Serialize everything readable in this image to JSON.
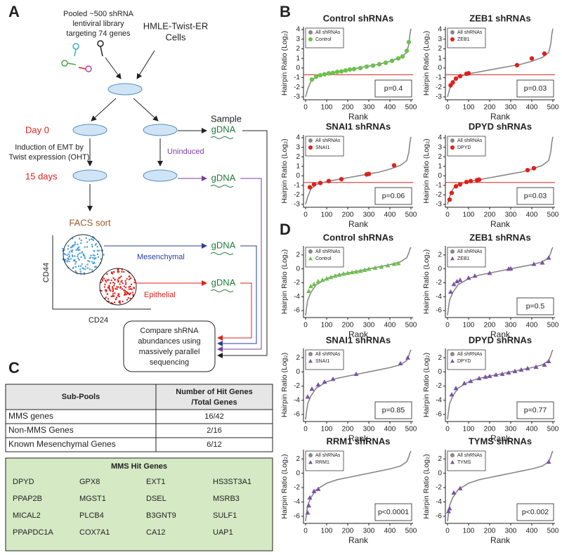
{
  "panel_labels": [
    "A",
    "B",
    "C",
    "D"
  ],
  "panel_a": {
    "library": [
      "Pooled ~500  shRNA",
      "lentiviral library",
      "targeting 74 genes"
    ],
    "cells": [
      "HMLE-Twist-ER",
      "Cells"
    ],
    "day0": "Day 0",
    "induction": [
      "Induction of EMT by",
      "Twist expression (OHT)"
    ],
    "days15": "15 days",
    "uninduced": "Uninduced",
    "sample": "Sample",
    "gdna": [
      "gDNA",
      "gDNA",
      "gDNA",
      "gDNA"
    ],
    "facs": "FACS sort",
    "y_axis": "CD44",
    "x_axis": "CD24",
    "mesenchymal": "Mesenchymal",
    "epithelial": "Epithelial",
    "compare": [
      "Compare shRNA",
      "abundances using",
      "massively parallel",
      "sequencing"
    ]
  },
  "panel_c": {
    "table": {
      "header": [
        "Sub-Pools",
        [
          "Number of Hit Genes",
          "/Total Genes"
        ]
      ],
      "rows": [
        [
          "MMS genes",
          "16/42"
        ],
        [
          "Non-MMS Genes",
          "2/16"
        ],
        [
          "Known Mesenchymal Genes",
          "6/12"
        ]
      ]
    },
    "hit_genes": {
      "title": "MMS Hit Genes",
      "rows": [
        [
          "DPYD",
          "GPX8",
          "EXT1",
          "HS3ST3A1"
        ],
        [
          "PPAP2B",
          "MGST1",
          "DSEL",
          "MSRB3"
        ],
        [
          "MICAL2",
          "PLCB4",
          "B3GNT9",
          "SULF1"
        ],
        [
          "PPAPDC1A",
          "COX7A1",
          "CA12",
          "UAP1"
        ]
      ]
    }
  },
  "chart_data": [
    {
      "type": "scatter",
      "title": "Control shRNAs",
      "xlabel": "Rank",
      "ylabel": "Hairpin Ratio (Log₂)",
      "xlim": [
        -10,
        510
      ],
      "ylim": [
        -3.3,
        4.3
      ],
      "xticks": [
        0,
        100,
        200,
        300,
        400,
        500
      ],
      "yticks": [
        -3,
        -2,
        -1,
        0,
        1,
        2,
        3,
        4
      ],
      "hline": -0.7,
      "hline_color": "#e0201b",
      "annotation": "p=0.4",
      "series": [
        {
          "name": "All shRNAs",
          "color": "#888888",
          "marker": "line",
          "x": [
            0,
            5,
            10,
            25,
            50,
            100,
            150,
            200,
            250,
            300,
            350,
            400,
            450,
            480,
            490,
            495,
            500
          ],
          "values": [
            -3,
            -2.6,
            -2.2,
            -1.4,
            -0.9,
            -0.6,
            -0.4,
            -0.2,
            0,
            0.2,
            0.4,
            0.7,
            1.1,
            1.6,
            2.5,
            3.5,
            4.1
          ]
        },
        {
          "name": "Control",
          "color": "#6cc24a",
          "marker": "circle",
          "x": [
            30,
            50,
            70,
            90,
            110,
            130,
            150,
            170,
            190,
            210,
            230,
            260,
            290,
            320,
            350,
            380,
            410,
            440,
            460,
            480,
            490
          ],
          "values": [
            -1.2,
            -0.9,
            -0.75,
            -0.65,
            -0.55,
            -0.5,
            -0.4,
            -0.35,
            -0.25,
            -0.15,
            -0.1,
            0,
            0.15,
            0.25,
            0.4,
            0.55,
            0.75,
            1,
            1.2,
            1.8,
            2.7
          ]
        }
      ]
    },
    {
      "type": "scatter",
      "title": "ZEB1 shRNAs",
      "xlabel": "Rank",
      "ylabel": "Hairpin Ratio (Log₂)",
      "xlim": [
        -10,
        510
      ],
      "ylim": [
        -3.3,
        4.3
      ],
      "xticks": [
        0,
        100,
        200,
        300,
        400,
        500
      ],
      "yticks": [
        -3,
        -2,
        -1,
        0,
        1,
        2,
        3,
        4
      ],
      "hline": -0.7,
      "hline_color": "#e0201b",
      "annotation": "p=0.03",
      "series": [
        {
          "name": "All shRNAs",
          "color": "#888888",
          "marker": "line",
          "x": [
            0,
            5,
            10,
            25,
            50,
            100,
            150,
            200,
            250,
            300,
            350,
            400,
            450,
            480,
            490,
            495,
            500
          ],
          "values": [
            -3,
            -2.6,
            -2.2,
            -1.4,
            -0.9,
            -0.6,
            -0.4,
            -0.2,
            0,
            0.2,
            0.4,
            0.7,
            1.1,
            1.6,
            2.5,
            3.5,
            4.1
          ]
        },
        {
          "name": "ZEB1",
          "color": "#e0201b",
          "marker": "circle",
          "x": [
            15,
            25,
            40,
            60,
            90,
            100,
            330,
            400,
            460
          ],
          "values": [
            -1.8,
            -1.5,
            -1.1,
            -0.85,
            -0.6,
            -0.55,
            0.3,
            1.0,
            1.5
          ]
        }
      ]
    },
    {
      "type": "scatter",
      "title": "SNAI1 shRNAs",
      "xlabel": "Rank",
      "ylabel": "Hairpin Ratio (Log₂)",
      "xlim": [
        -10,
        510
      ],
      "ylim": [
        -3.3,
        4.3
      ],
      "xticks": [
        0,
        100,
        200,
        300,
        400,
        500
      ],
      "yticks": [
        -3,
        -2,
        -1,
        0,
        1,
        2,
        3,
        4
      ],
      "hline": -0.7,
      "hline_color": "#e0201b",
      "annotation": "p=0.06",
      "series": [
        {
          "name": "All shRNAs",
          "color": "#888888",
          "marker": "line",
          "x": [
            0,
            5,
            10,
            25,
            50,
            100,
            150,
            200,
            250,
            300,
            350,
            400,
            450,
            480,
            490,
            495,
            500
          ],
          "values": [
            -3,
            -2.6,
            -2.2,
            -1.4,
            -0.9,
            -0.6,
            -0.4,
            -0.2,
            0,
            0.2,
            0.4,
            0.7,
            1.1,
            1.6,
            2.5,
            3.5,
            4.1
          ]
        },
        {
          "name": "SNAI1",
          "color": "#e0201b",
          "marker": "circle",
          "x": [
            20,
            40,
            70,
            110,
            170,
            290,
            300,
            420
          ],
          "values": [
            -1.2,
            -0.9,
            -0.75,
            -0.55,
            -0.35,
            0.15,
            0.2,
            1.1
          ]
        }
      ]
    },
    {
      "type": "scatter",
      "title": "DPYD shRNAs",
      "xlabel": "Rank",
      "ylabel": "Hairpin Ratio (Log₂)",
      "xlim": [
        -10,
        510
      ],
      "ylim": [
        -3.3,
        4.3
      ],
      "xticks": [
        0,
        100,
        200,
        300,
        400,
        500
      ],
      "yticks": [
        -3,
        -2,
        -1,
        0,
        1,
        2,
        3,
        4
      ],
      "hline": -0.7,
      "hline_color": "#e0201b",
      "annotation": "p=0.03",
      "series": [
        {
          "name": "All shRNAs",
          "color": "#888888",
          "marker": "line",
          "x": [
            0,
            5,
            10,
            25,
            50,
            100,
            150,
            200,
            250,
            300,
            350,
            400,
            450,
            480,
            490,
            495,
            500
          ],
          "values": [
            -3,
            -2.6,
            -2.2,
            -1.4,
            -0.9,
            -0.6,
            -0.4,
            -0.2,
            0,
            0.2,
            0.4,
            0.7,
            1.1,
            1.6,
            2.5,
            3.5,
            4.1
          ]
        },
        {
          "name": "DPYD",
          "color": "#e0201b",
          "marker": "circle",
          "x": [
            10,
            20,
            40,
            60,
            90,
            110,
            140,
            150,
            380,
            410
          ],
          "values": [
            -2.5,
            -1.8,
            -1.1,
            -0.9,
            -0.65,
            -0.55,
            -0.45,
            -0.4,
            0.6,
            0.8
          ]
        }
      ]
    },
    {
      "type": "scatter",
      "title": "Control shRNAs",
      "xlabel": "Rank",
      "ylabel": "Hairpin Ratio (Log₂)",
      "xlim": [
        -10,
        510
      ],
      "ylim": [
        -7,
        3.3
      ],
      "xticks": [
        0,
        100,
        200,
        300,
        400,
        500
      ],
      "yticks": [
        -6,
        -4,
        -2,
        0,
        2
      ],
      "annotation": null,
      "series": [
        {
          "name": "All shRNAs",
          "color": "#888888",
          "marker": "line",
          "x": [
            0,
            5,
            10,
            25,
            50,
            100,
            150,
            200,
            250,
            300,
            350,
            400,
            450,
            480,
            490,
            495,
            500
          ],
          "values": [
            -6.7,
            -5.5,
            -4.5,
            -3.4,
            -2.3,
            -1.4,
            -0.9,
            -0.6,
            -0.3,
            0,
            0.3,
            0.6,
            1.0,
            1.6,
            2.3,
            2.8,
            3.1
          ]
        },
        {
          "name": "Control",
          "color": "#6cc24a",
          "marker": "triangle",
          "x": [
            15,
            25,
            40,
            60,
            80,
            100,
            120,
            140,
            160,
            180,
            200,
            220,
            240,
            260,
            280,
            300,
            330,
            360,
            390,
            420,
            440
          ],
          "values": [
            -3.2,
            -2.5,
            -2.2,
            -1.8,
            -1.6,
            -1.4,
            -1.2,
            -1.0,
            -0.85,
            -0.7,
            -0.6,
            -0.5,
            -0.4,
            -0.3,
            -0.15,
            0,
            0.15,
            0.3,
            0.5,
            0.7,
            0.8
          ]
        }
      ]
    },
    {
      "type": "scatter",
      "title": "ZEB1 shRNAs",
      "xlabel": "Rank",
      "ylabel": "Hairpin Ratio (Log₂)",
      "xlim": [
        -10,
        510
      ],
      "ylim": [
        -7,
        3.3
      ],
      "xticks": [
        0,
        100,
        200,
        300,
        400,
        500
      ],
      "yticks": [
        -6,
        -4,
        -2,
        0,
        2
      ],
      "annotation": "p=0.5",
      "series": [
        {
          "name": "All shRNAs",
          "color": "#888888",
          "marker": "line",
          "x": [
            0,
            5,
            10,
            25,
            50,
            100,
            150,
            200,
            250,
            300,
            350,
            400,
            450,
            480,
            490,
            495,
            500
          ],
          "values": [
            -6.7,
            -5.5,
            -4.5,
            -3.4,
            -2.3,
            -1.4,
            -0.9,
            -0.6,
            -0.3,
            0,
            0.3,
            0.6,
            1.0,
            1.6,
            2.3,
            2.8,
            3.1
          ]
        },
        {
          "name": "ZEB1",
          "color": "#7b52a6",
          "marker": "triangle",
          "x": [
            15,
            30,
            45,
            60,
            100,
            130,
            200,
            290,
            300,
            410,
            450,
            480
          ],
          "values": [
            -3.3,
            -2.2,
            -1.8,
            -1.6,
            -1.3,
            -1.0,
            -0.6,
            0,
            0.05,
            0.7,
            0.9,
            1.6
          ]
        }
      ]
    },
    {
      "type": "scatter",
      "title": "SNAI1 shRNAs",
      "xlabel": "Rank",
      "ylabel": "Hairpin Ratio (Log₂)",
      "xlim": [
        -10,
        510
      ],
      "ylim": [
        -7,
        3.3
      ],
      "xticks": [
        0,
        100,
        200,
        300,
        400,
        500
      ],
      "yticks": [
        -6,
        -4,
        -2,
        0,
        2
      ],
      "annotation": "p=0.85",
      "series": [
        {
          "name": "All shRNAs",
          "color": "#888888",
          "marker": "line",
          "x": [
            0,
            5,
            10,
            25,
            50,
            100,
            150,
            200,
            250,
            300,
            350,
            400,
            450,
            480,
            490,
            495,
            500
          ],
          "values": [
            -6.7,
            -5.5,
            -4.5,
            -3.4,
            -2.3,
            -1.4,
            -0.9,
            -0.6,
            -0.3,
            0,
            0.3,
            0.6,
            1.0,
            1.6,
            2.3,
            2.8,
            3.1
          ]
        },
        {
          "name": "SNAI1",
          "color": "#7b52a6",
          "marker": "triangle",
          "x": [
            10,
            30,
            60,
            90,
            130,
            240,
            450,
            485
          ],
          "values": [
            -3.5,
            -2.4,
            -1.8,
            -1.4,
            -1.0,
            -0.3,
            1.2,
            2.0
          ]
        }
      ]
    },
    {
      "type": "scatter",
      "title": "DPYD shRNAs",
      "xlabel": "Rank",
      "ylabel": "Hairpin Ratio (Log₂)",
      "xlim": [
        -10,
        510
      ],
      "ylim": [
        -7,
        3.3
      ],
      "xticks": [
        0,
        100,
        200,
        300,
        400,
        500
      ],
      "yticks": [
        -6,
        -4,
        -2,
        0,
        2
      ],
      "annotation": "p=0.77",
      "series": [
        {
          "name": "All shRNAs",
          "color": "#888888",
          "marker": "line",
          "x": [
            0,
            5,
            10,
            25,
            50,
            100,
            150,
            200,
            250,
            300,
            350,
            400,
            450,
            480,
            490,
            495,
            500
          ],
          "values": [
            -6.7,
            -5.5,
            -4.5,
            -3.4,
            -2.3,
            -1.4,
            -0.9,
            -0.6,
            -0.3,
            0,
            0.3,
            0.6,
            1.0,
            1.6,
            2.3,
            2.8,
            3.1
          ]
        },
        {
          "name": "DPYD",
          "color": "#7b52a6",
          "marker": "triangle",
          "x": [
            20,
            40,
            80,
            110,
            150,
            180,
            200,
            230,
            260,
            290,
            320,
            350,
            380,
            420,
            460,
            480
          ],
          "values": [
            -3.2,
            -2.3,
            -1.6,
            -1.3,
            -0.9,
            -0.7,
            -0.6,
            -0.4,
            -0.3,
            -0.1,
            0.1,
            0.3,
            0.5,
            0.7,
            1.0,
            1.5
          ]
        }
      ]
    },
    {
      "type": "scatter",
      "title": "RRM1 shRNAs",
      "xlabel": "Rank",
      "ylabel": "Hairpin Ratio (Log₂)",
      "xlim": [
        -10,
        510
      ],
      "ylim": [
        -7,
        3.3
      ],
      "xticks": [
        0,
        100,
        200,
        300,
        400,
        500
      ],
      "yticks": [
        -6,
        -4,
        -2,
        0,
        2
      ],
      "annotation": "p<0.0001",
      "series": [
        {
          "name": "All shRNAs",
          "color": "#888888",
          "marker": "line",
          "x": [
            0,
            5,
            10,
            25,
            50,
            100,
            150,
            200,
            250,
            300,
            350,
            400,
            450,
            480,
            490,
            495,
            500
          ],
          "values": [
            -6.7,
            -5.5,
            -4.5,
            -3.4,
            -2.3,
            -1.4,
            -0.9,
            -0.6,
            -0.3,
            0,
            0.3,
            0.6,
            1.0,
            1.6,
            2.3,
            2.8,
            3.1
          ]
        },
        {
          "name": "RRM1",
          "color": "#7b52a6",
          "marker": "triangle",
          "x": [
            10,
            15,
            20,
            40,
            60
          ],
          "values": [
            -5.5,
            -4.5,
            -3.4,
            -2.5,
            -2.2
          ]
        }
      ]
    },
    {
      "type": "scatter",
      "title": "TYMS shRNAs",
      "xlabel": "Rank",
      "ylabel": "Hairpin Ratio (Log₂)",
      "xlim": [
        -10,
        510
      ],
      "ylim": [
        -7,
        3.3
      ],
      "xticks": [
        0,
        100,
        200,
        300,
        400,
        500
      ],
      "yticks": [
        -6,
        -4,
        -2,
        0,
        2
      ],
      "annotation": "p<0.002",
      "series": [
        {
          "name": "All shRNAs",
          "color": "#888888",
          "marker": "line",
          "x": [
            0,
            5,
            10,
            25,
            50,
            100,
            150,
            200,
            250,
            300,
            350,
            400,
            450,
            480,
            490,
            495,
            500
          ],
          "values": [
            -6.7,
            -5.5,
            -4.5,
            -3.4,
            -2.3,
            -1.4,
            -0.9,
            -0.6,
            -0.3,
            0,
            0.3,
            0.6,
            1.0,
            1.6,
            2.3,
            2.8,
            3.1
          ]
        },
        {
          "name": "TYMS",
          "color": "#7b52a6",
          "marker": "triangle",
          "x": [
            5,
            10,
            30,
            60,
            480
          ],
          "values": [
            -5.3,
            -4.9,
            -2.7,
            -2.1,
            1.6
          ]
        }
      ]
    }
  ]
}
